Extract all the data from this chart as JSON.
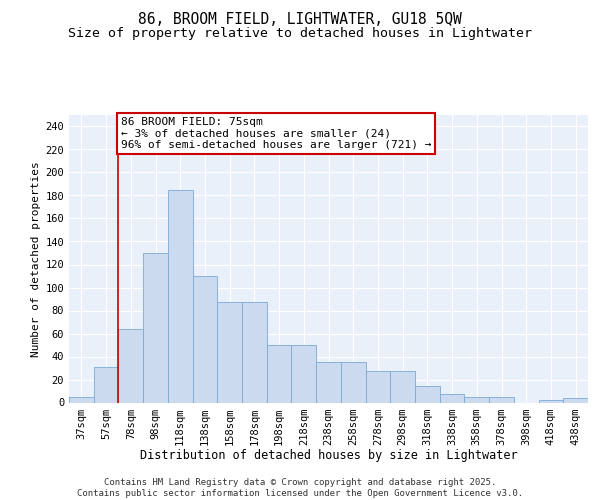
{
  "title1": "86, BROOM FIELD, LIGHTWATER, GU18 5QW",
  "title2": "Size of property relative to detached houses in Lightwater",
  "xlabel": "Distribution of detached houses by size in Lightwater",
  "ylabel": "Number of detached properties",
  "categories": [
    "37sqm",
    "57sqm",
    "78sqm",
    "98sqm",
    "118sqm",
    "138sqm",
    "158sqm",
    "178sqm",
    "198sqm",
    "218sqm",
    "238sqm",
    "258sqm",
    "278sqm",
    "298sqm",
    "318sqm",
    "338sqm",
    "358sqm",
    "378sqm",
    "398sqm",
    "418sqm",
    "438sqm"
  ],
  "values": [
    5,
    31,
    64,
    130,
    185,
    110,
    87,
    87,
    50,
    50,
    35,
    35,
    27,
    27,
    14,
    7,
    5,
    5,
    0,
    2,
    4
  ],
  "bar_color": "#ccdaf0",
  "bar_edge_color": "#7baad4",
  "vline_color": "#cc0000",
  "vline_x": 1.5,
  "annotation_text": "86 BROOM FIELD: 75sqm\n← 3% of detached houses are smaller (24)\n96% of semi-detached houses are larger (721) →",
  "annotation_box_color": "#ffffff",
  "annotation_box_edge": "#cc0000",
  "ylim": [
    0,
    250
  ],
  "yticks": [
    0,
    20,
    40,
    60,
    80,
    100,
    120,
    140,
    160,
    180,
    200,
    220,
    240
  ],
  "bg_color": "#eaf0fa",
  "grid_color": "#ffffff",
  "footer_text": "Contains HM Land Registry data © Crown copyright and database right 2025.\nContains public sector information licensed under the Open Government Licence v3.0.",
  "title1_fontsize": 10.5,
  "title2_fontsize": 9.5,
  "xlabel_fontsize": 8.5,
  "ylabel_fontsize": 8,
  "tick_fontsize": 7.5,
  "annotation_fontsize": 8,
  "footer_fontsize": 6.5
}
